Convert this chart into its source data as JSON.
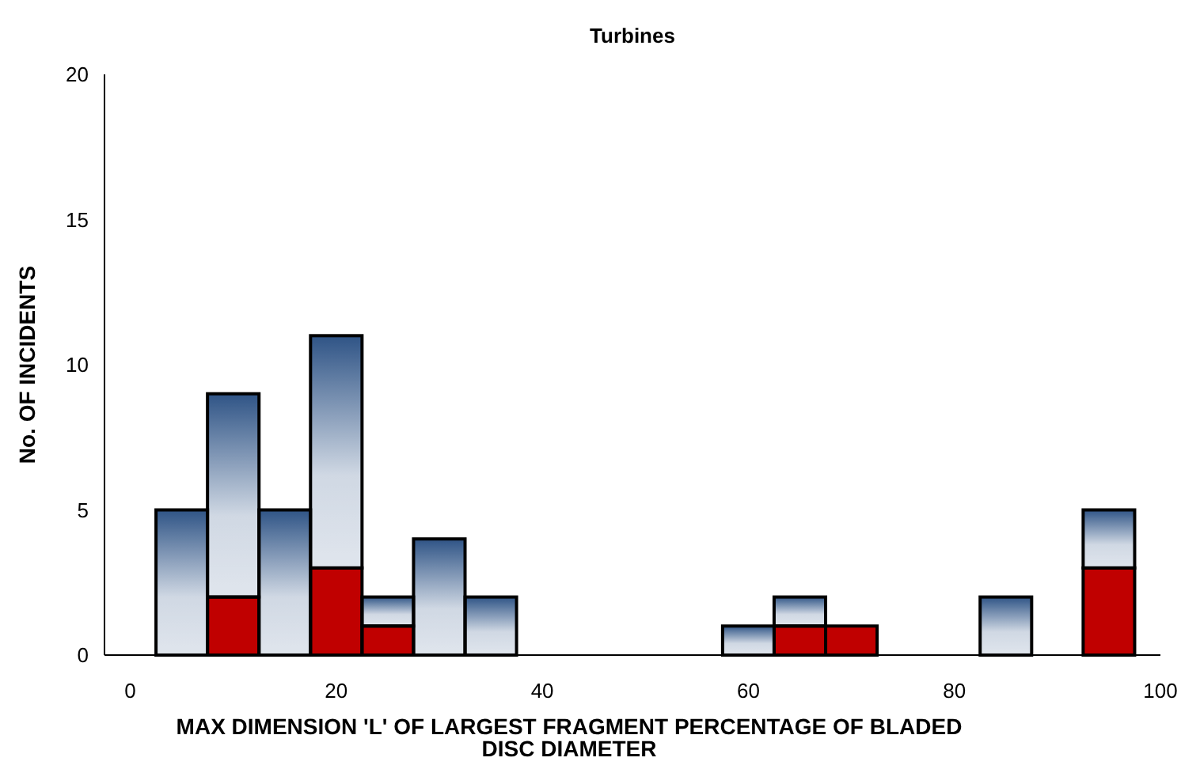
{
  "chart_data": {
    "type": "bar",
    "title": "Turbines",
    "xlabel": "MAX DIMENSION 'L' OF LARGEST FRAGMENT PERCENTAGE OF BLADED DISC DIAMETER",
    "ylabel": "No. OF INCIDENTS",
    "x": [
      5,
      10,
      15,
      20,
      25,
      30,
      35,
      40,
      45,
      50,
      55,
      60,
      65,
      70,
      75,
      80,
      85,
      90,
      95
    ],
    "stacked": true,
    "series": [
      {
        "color": "#c00000",
        "values": [
          0,
          2,
          0,
          3,
          1,
          0,
          0,
          0,
          0,
          0,
          0,
          0,
          1,
          1,
          0,
          0,
          0,
          0,
          3
        ]
      },
      {
        "color": "#2f5486",
        "values": [
          5,
          7,
          5,
          8,
          1,
          4,
          2,
          0,
          0,
          0,
          0,
          1,
          1,
          0,
          0,
          0,
          2,
          0,
          2
        ]
      }
    ],
    "xlim": [
      -2.5,
      100
    ],
    "xticks": [
      0,
      20,
      40,
      60,
      80,
      100
    ],
    "ylim": [
      0,
      20
    ],
    "yticks": [
      0,
      5,
      10,
      15,
      20
    ],
    "grid": false
  }
}
